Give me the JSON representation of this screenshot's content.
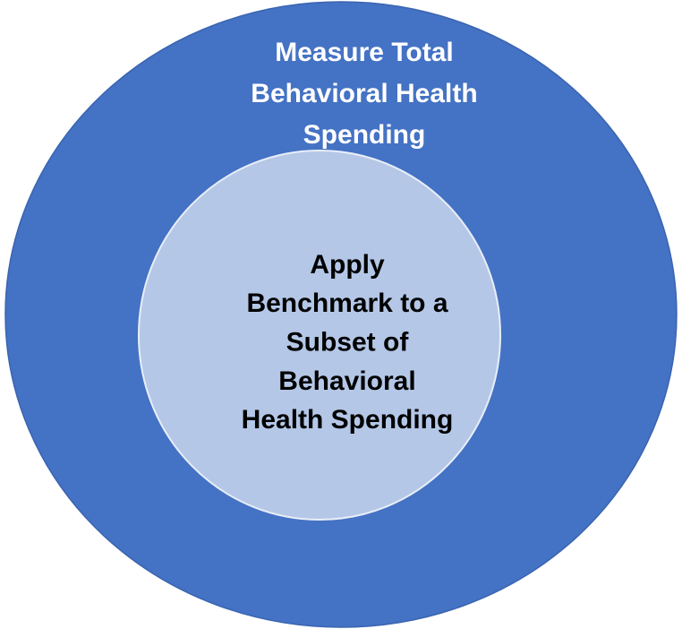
{
  "outer": {
    "lines": [
      "Measure Total",
      "Behavioral Health",
      "Spending"
    ]
  },
  "inner": {
    "lines": [
      "Apply",
      "Benchmark to a",
      "Subset of",
      "Behavioral",
      "Health Spending"
    ]
  }
}
